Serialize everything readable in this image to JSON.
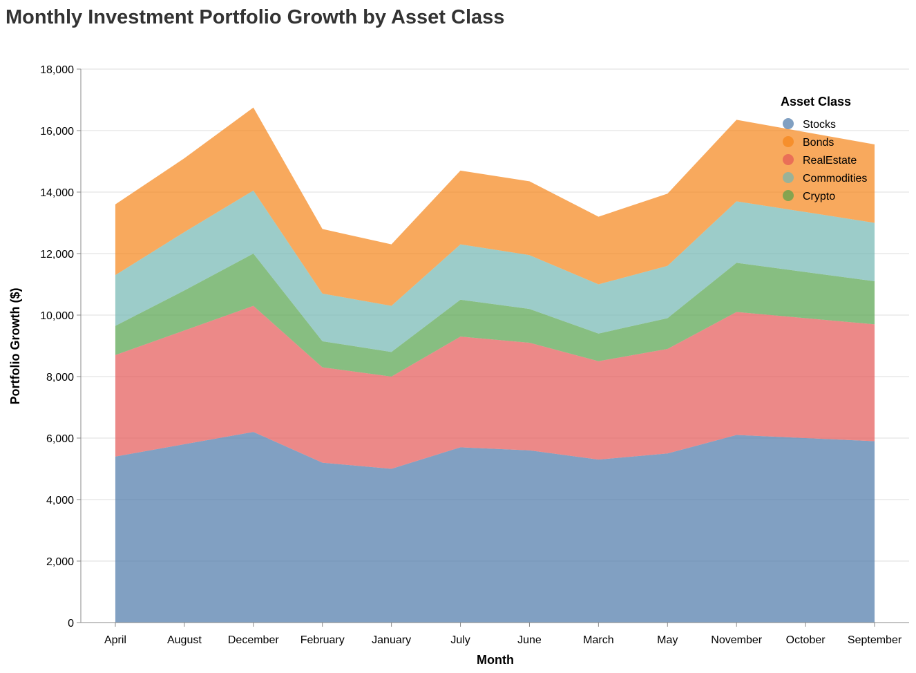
{
  "chart_data": {
    "type": "area",
    "stacked": true,
    "title": "Monthly Investment Portfolio Growth by Asset Class",
    "xlabel": "Month",
    "ylabel": "Portfolio Growth ($)",
    "ylim": [
      0,
      18000
    ],
    "y_ticks": [
      0,
      2000,
      4000,
      6000,
      8000,
      10000,
      12000,
      14000,
      16000,
      18000
    ],
    "y_tick_labels": [
      "0",
      "2,000",
      "4,000",
      "6,000",
      "8,000",
      "10,000",
      "12,000",
      "14,000",
      "16,000",
      "18,000"
    ],
    "grid": true,
    "categories": [
      "April",
      "August",
      "December",
      "February",
      "January",
      "July",
      "June",
      "March",
      "May",
      "November",
      "October",
      "September"
    ],
    "legend": {
      "title": "Asset Class",
      "placement": "top-right"
    },
    "series": [
      {
        "name": "Stocks",
        "color": "#4c78a8",
        "values": [
          5400,
          5800,
          6200,
          5200,
          5000,
          5700,
          5600,
          5300,
          5500,
          6100,
          6000,
          5900
        ]
      },
      {
        "name": "Bonds",
        "color": "#f58518",
        "values": [
          2300,
          2400,
          2700,
          2100,
          2000,
          2400,
          2400,
          2200,
          2350,
          2650,
          2600,
          2550
        ]
      },
      {
        "name": "RealEstate",
        "color": "#e45756",
        "values": [
          3300,
          3700,
          4100,
          3100,
          3000,
          3600,
          3500,
          3200,
          3400,
          4000,
          3900,
          3800
        ]
      },
      {
        "name": "Commodities",
        "color": "#72b7b2",
        "values": [
          1650,
          1900,
          2050,
          1550,
          1500,
          1800,
          1750,
          1600,
          1700,
          2000,
          1950,
          1900
        ]
      },
      {
        "name": "Crypto",
        "color": "#54a24b",
        "values": [
          950,
          1300,
          1700,
          850,
          800,
          1200,
          1100,
          900,
          1000,
          1600,
          1500,
          1400
        ]
      }
    ],
    "stack_order": [
      "Stocks",
      "RealEstate",
      "Crypto",
      "Commodities",
      "Bonds"
    ],
    "opacity": 0.7
  }
}
